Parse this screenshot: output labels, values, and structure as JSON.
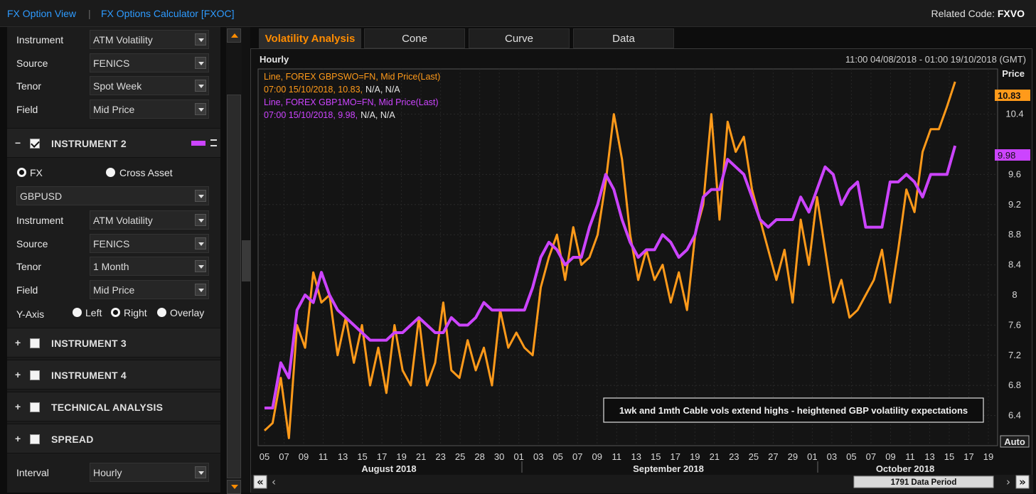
{
  "topbar": {
    "link1": "FX Option View",
    "separator": "|",
    "link2": "FX Options Calculator [FXOC]",
    "related_label": "Related Code:",
    "related_code": "FXVO"
  },
  "instrument1": {
    "instrument_label": "Instrument",
    "instrument_value": "ATM Volatility",
    "source_label": "Source",
    "source_value": "FENICS",
    "tenor_label": "Tenor",
    "tenor_value": "Spot Week",
    "field_label": "Field",
    "field_value": "Mid Price"
  },
  "instrument2": {
    "toggle": "−",
    "title": "INSTRUMENT 2",
    "fx_label": "FX",
    "cross_label": "Cross Asset",
    "pair": "GBPUSD",
    "instrument_label": "Instrument",
    "instrument_value": "ATM Volatility",
    "source_label": "Source",
    "source_value": "FENICS",
    "tenor_label": "Tenor",
    "tenor_value": "1 Month",
    "field_label": "Field",
    "field_value": "Mid Price",
    "yaxis_label": "Y-Axis",
    "left_label": "Left",
    "right_label": "Right",
    "overlay_label": "Overlay",
    "color": "#cc44ff"
  },
  "sections": [
    {
      "toggle": "+",
      "title": "INSTRUMENT 3"
    },
    {
      "toggle": "+",
      "title": "INSTRUMENT 4"
    },
    {
      "toggle": "+",
      "title": "TECHNICAL ANALYSIS"
    },
    {
      "toggle": "+",
      "title": "SPREAD"
    }
  ],
  "interval": {
    "label": "Interval",
    "value": "Hourly"
  },
  "tabs": [
    "Volatility Analysis",
    "Cone",
    "Curve",
    "Data"
  ],
  "chart": {
    "interval_label": "Hourly",
    "range_label": "11:00 04/08/2018 - 01:00 19/10/2018 (GMT)",
    "axis_title": "Price",
    "auto_label": "Auto",
    "legend": [
      {
        "line1": "Line, FOREX GBPSWO=FN, Mid Price(Last)",
        "line2a": "07:00 15/10/2018, 10.83,",
        "line2b": "N/A, N/A",
        "color": "#ff9a1a"
      },
      {
        "line1": "Line, FOREX GBP1MO=FN, Mid Price(Last)",
        "line2a": "07:00 15/10/2018, 9.98,",
        "line2b": "N/A, N/A",
        "color": "#cc44ff"
      }
    ],
    "last_tag1": "10.83",
    "last_tag2": "9.98",
    "annotation": "1wk and 1mth Cable vols extend highs - heightened GBP volatility expectations",
    "months": [
      "August 2018",
      "September 2018",
      "October 2018"
    ],
    "scroll_label": "1791 Data Period",
    "nav_first": "«",
    "nav_prev": "‹",
    "nav_next": "›",
    "nav_last": "»"
  },
  "chart_data": {
    "type": "line",
    "ylabel": "Price",
    "ylim": [
      6.0,
      11.0
    ],
    "yticks": [
      6.4,
      6.8,
      7.2,
      7.6,
      8,
      8.4,
      8.8,
      9.2,
      9.6,
      10.4
    ],
    "xticks": [
      "05",
      "07",
      "09",
      "11",
      "13",
      "15",
      "17",
      "19",
      "21",
      "23",
      "25",
      "28",
      "30",
      "01",
      "03",
      "05",
      "07",
      "09",
      "11",
      "13",
      "15",
      "17",
      "19",
      "21",
      "23",
      "25",
      "27",
      "29",
      "01",
      "03",
      "05",
      "07",
      "09",
      "11",
      "13",
      "15",
      "17",
      "19"
    ],
    "series": [
      {
        "name": "FOREX GBPSWO=FN, Mid Price(Last)",
        "color": "#ff9a1a",
        "x": [
          0,
          1,
          2,
          3,
          4,
          5,
          6,
          7,
          8,
          9,
          10,
          11,
          12,
          13,
          14,
          15,
          16,
          17,
          18,
          19,
          20,
          21,
          22,
          23,
          24,
          25,
          26,
          27,
          28,
          29,
          30,
          31,
          32,
          33,
          34,
          35,
          36,
          37,
          38,
          39,
          40,
          41,
          42,
          43,
          44,
          45,
          46,
          47,
          48,
          49,
          50,
          51,
          52,
          53,
          54,
          55,
          56,
          57,
          58,
          59,
          60,
          61,
          62,
          63,
          64,
          65,
          66,
          67,
          68,
          69,
          70,
          71,
          72,
          73,
          74,
          75,
          76,
          77,
          78,
          79,
          80,
          81,
          82,
          83,
          84,
          85
        ],
        "values": [
          6.2,
          6.3,
          6.9,
          6.1,
          7.6,
          7.3,
          8.3,
          7.9,
          8.0,
          7.2,
          7.7,
          7.1,
          7.6,
          6.8,
          7.3,
          6.7,
          7.6,
          7.0,
          6.8,
          7.7,
          6.8,
          7.1,
          7.9,
          7.0,
          6.9,
          7.4,
          7.0,
          7.3,
          6.8,
          7.8,
          7.3,
          7.5,
          7.3,
          7.2,
          8.1,
          8.5,
          8.8,
          8.2,
          8.9,
          8.4,
          8.5,
          8.8,
          9.5,
          10.4,
          9.8,
          8.8,
          8.2,
          8.6,
          8.2,
          8.4,
          7.9,
          8.3,
          7.8,
          8.8,
          9.2,
          10.4,
          9.0,
          10.3,
          9.9,
          10.1,
          9.4,
          9.0,
          8.6,
          8.2,
          8.6,
          7.9,
          9.0,
          8.4,
          9.3,
          8.6,
          7.9,
          8.2,
          7.7,
          7.8,
          8.0,
          8.2,
          8.6,
          7.9,
          8.6,
          9.4,
          9.1,
          9.9,
          10.2,
          10.2,
          10.5,
          10.83
        ]
      },
      {
        "name": "FOREX GBP1MO=FN, Mid Price(Last)",
        "color": "#cc44ff",
        "x": [
          0,
          1,
          2,
          3,
          4,
          5,
          6,
          7,
          8,
          9,
          10,
          11,
          12,
          13,
          14,
          15,
          16,
          17,
          18,
          19,
          20,
          21,
          22,
          23,
          24,
          25,
          26,
          27,
          28,
          29,
          30,
          31,
          32,
          33,
          34,
          35,
          36,
          37,
          38,
          39,
          40,
          41,
          42,
          43,
          44,
          45,
          46,
          47,
          48,
          49,
          50,
          51,
          52,
          53,
          54,
          55,
          56,
          57,
          58,
          59,
          60,
          61,
          62,
          63,
          64,
          65,
          66,
          67,
          68,
          69,
          70,
          71,
          72,
          73,
          74,
          75,
          76,
          77,
          78,
          79,
          80,
          81,
          82,
          83,
          84,
          85
        ],
        "values": [
          6.5,
          6.5,
          7.1,
          6.9,
          7.8,
          8.0,
          7.9,
          8.3,
          8.0,
          7.8,
          7.7,
          7.6,
          7.5,
          7.4,
          7.4,
          7.4,
          7.5,
          7.5,
          7.6,
          7.7,
          7.6,
          7.5,
          7.5,
          7.7,
          7.6,
          7.6,
          7.7,
          7.9,
          7.8,
          7.8,
          7.8,
          7.8,
          7.8,
          8.1,
          8.5,
          8.7,
          8.6,
          8.4,
          8.5,
          8.5,
          8.9,
          9.2,
          9.6,
          9.4,
          9.0,
          8.7,
          8.5,
          8.6,
          8.6,
          8.8,
          8.7,
          8.5,
          8.6,
          8.8,
          9.3,
          9.4,
          9.4,
          9.8,
          9.7,
          9.6,
          9.3,
          9.0,
          8.9,
          9.0,
          9.0,
          9.0,
          9.3,
          9.1,
          9.4,
          9.7,
          9.6,
          9.2,
          9.4,
          9.5,
          8.9,
          8.9,
          8.9,
          9.5,
          9.5,
          9.6,
          9.5,
          9.3,
          9.6,
          9.6,
          9.6,
          9.98
        ]
      }
    ]
  }
}
